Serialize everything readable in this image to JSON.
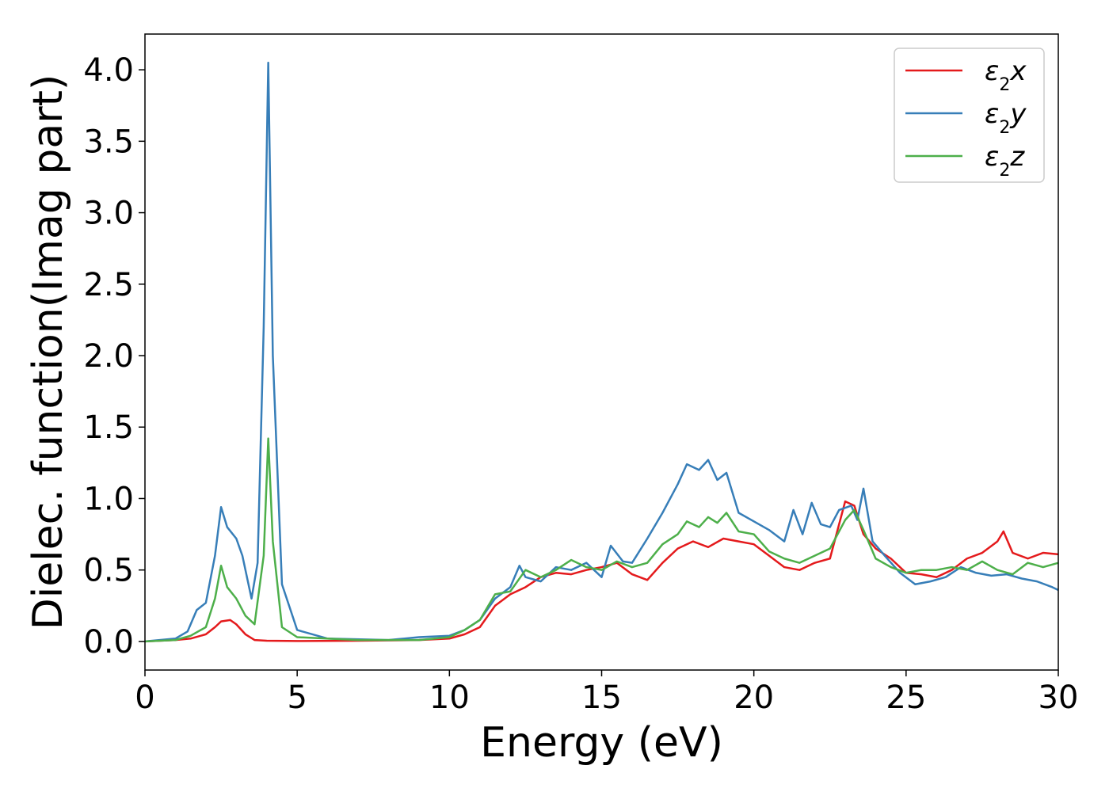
{
  "chart_data": {
    "type": "line",
    "title": "",
    "xlabel": "Energy (eV)",
    "ylabel": "Dielec. function(Imag part)",
    "xlim": [
      0,
      30
    ],
    "ylim": [
      -0.2,
      4.25
    ],
    "xticks": [
      0,
      5,
      10,
      15,
      20,
      25,
      30
    ],
    "xtick_labels": [
      "0",
      "5",
      "10",
      "15",
      "20",
      "25",
      "30"
    ],
    "yticks": [
      0.0,
      0.5,
      1.0,
      1.5,
      2.0,
      2.5,
      3.0,
      3.5,
      4.0
    ],
    "ytick_labels": [
      "0.0",
      "0.5",
      "1.0",
      "1.5",
      "2.0",
      "2.5",
      "3.0",
      "3.5",
      "4.0"
    ],
    "grid": false,
    "legend_position": "top-right",
    "series": [
      {
        "name": "ε2x",
        "legend_main": "ε",
        "legend_sub": "2",
        "legend_suffix": "x",
        "color": "#e41a1c",
        "points": [
          [
            0,
            0
          ],
          [
            1.0,
            0.01
          ],
          [
            1.5,
            0.02
          ],
          [
            2.0,
            0.05
          ],
          [
            2.3,
            0.1
          ],
          [
            2.5,
            0.14
          ],
          [
            2.8,
            0.15
          ],
          [
            3.0,
            0.12
          ],
          [
            3.3,
            0.05
          ],
          [
            3.6,
            0.01
          ],
          [
            4.0,
            0.005
          ],
          [
            5,
            0.003
          ],
          [
            7,
            0.005
          ],
          [
            9,
            0.01
          ],
          [
            10,
            0.02
          ],
          [
            10.5,
            0.05
          ],
          [
            11,
            0.1
          ],
          [
            11.5,
            0.25
          ],
          [
            12,
            0.33
          ],
          [
            12.5,
            0.38
          ],
          [
            13,
            0.45
          ],
          [
            13.5,
            0.48
          ],
          [
            14,
            0.47
          ],
          [
            14.5,
            0.5
          ],
          [
            15,
            0.52
          ],
          [
            15.5,
            0.55
          ],
          [
            16,
            0.47
          ],
          [
            16.5,
            0.43
          ],
          [
            17,
            0.55
          ],
          [
            17.5,
            0.65
          ],
          [
            18,
            0.7
          ],
          [
            18.5,
            0.66
          ],
          [
            19,
            0.72
          ],
          [
            19.5,
            0.7
          ],
          [
            20,
            0.68
          ],
          [
            20.5,
            0.6
          ],
          [
            21,
            0.52
          ],
          [
            21.5,
            0.5
          ],
          [
            22,
            0.55
          ],
          [
            22.5,
            0.58
          ],
          [
            23,
            0.98
          ],
          [
            23.3,
            0.95
          ],
          [
            23.6,
            0.75
          ],
          [
            24,
            0.65
          ],
          [
            24.5,
            0.58
          ],
          [
            25,
            0.48
          ],
          [
            25.5,
            0.47
          ],
          [
            26,
            0.45
          ],
          [
            26.5,
            0.5
          ],
          [
            27,
            0.58
          ],
          [
            27.5,
            0.62
          ],
          [
            28,
            0.7
          ],
          [
            28.2,
            0.77
          ],
          [
            28.5,
            0.62
          ],
          [
            29,
            0.58
          ],
          [
            29.5,
            0.62
          ],
          [
            30,
            0.61
          ]
        ]
      },
      {
        "name": "ε2y",
        "legend_main": "ε",
        "legend_sub": "2",
        "legend_suffix": "y",
        "color": "#377eb8",
        "points": [
          [
            0,
            0
          ],
          [
            1.0,
            0.02
          ],
          [
            1.4,
            0.07
          ],
          [
            1.7,
            0.22
          ],
          [
            2.0,
            0.27
          ],
          [
            2.3,
            0.6
          ],
          [
            2.5,
            0.94
          ],
          [
            2.7,
            0.8
          ],
          [
            3.0,
            0.72
          ],
          [
            3.2,
            0.6
          ],
          [
            3.5,
            0.3
          ],
          [
            3.7,
            0.55
          ],
          [
            3.9,
            2.2
          ],
          [
            4.05,
            4.05
          ],
          [
            4.2,
            2.0
          ],
          [
            4.5,
            0.4
          ],
          [
            5,
            0.08
          ],
          [
            6,
            0.02
          ],
          [
            8,
            0.01
          ],
          [
            9,
            0.03
          ],
          [
            10,
            0.04
          ],
          [
            10.5,
            0.08
          ],
          [
            11,
            0.15
          ],
          [
            11.5,
            0.3
          ],
          [
            12,
            0.38
          ],
          [
            12.3,
            0.53
          ],
          [
            12.5,
            0.45
          ],
          [
            13,
            0.42
          ],
          [
            13.5,
            0.52
          ],
          [
            14,
            0.5
          ],
          [
            14.5,
            0.55
          ],
          [
            15,
            0.45
          ],
          [
            15.3,
            0.67
          ],
          [
            15.7,
            0.56
          ],
          [
            16,
            0.55
          ],
          [
            16.5,
            0.72
          ],
          [
            17,
            0.9
          ],
          [
            17.5,
            1.1
          ],
          [
            17.8,
            1.24
          ],
          [
            18.2,
            1.2
          ],
          [
            18.5,
            1.27
          ],
          [
            18.8,
            1.13
          ],
          [
            19.1,
            1.18
          ],
          [
            19.5,
            0.9
          ],
          [
            20,
            0.84
          ],
          [
            20.5,
            0.78
          ],
          [
            21,
            0.7
          ],
          [
            21.3,
            0.92
          ],
          [
            21.6,
            0.75
          ],
          [
            21.9,
            0.97
          ],
          [
            22.2,
            0.82
          ],
          [
            22.5,
            0.8
          ],
          [
            22.8,
            0.92
          ],
          [
            23.2,
            0.95
          ],
          [
            23.4,
            0.85
          ],
          [
            23.6,
            1.07
          ],
          [
            23.9,
            0.7
          ],
          [
            24.3,
            0.6
          ],
          [
            24.8,
            0.48
          ],
          [
            25.3,
            0.4
          ],
          [
            25.8,
            0.42
          ],
          [
            26.3,
            0.45
          ],
          [
            26.8,
            0.52
          ],
          [
            27.3,
            0.48
          ],
          [
            27.8,
            0.46
          ],
          [
            28.3,
            0.47
          ],
          [
            28.8,
            0.44
          ],
          [
            29.3,
            0.42
          ],
          [
            29.8,
            0.38
          ],
          [
            30,
            0.36
          ]
        ]
      },
      {
        "name": "ε2z",
        "legend_main": "ε",
        "legend_sub": "2",
        "legend_suffix": "z",
        "color": "#4daf4a",
        "points": [
          [
            0,
            0
          ],
          [
            1.0,
            0.01
          ],
          [
            1.5,
            0.04
          ],
          [
            2.0,
            0.1
          ],
          [
            2.3,
            0.3
          ],
          [
            2.5,
            0.53
          ],
          [
            2.7,
            0.38
          ],
          [
            3.0,
            0.3
          ],
          [
            3.3,
            0.18
          ],
          [
            3.6,
            0.12
          ],
          [
            3.9,
            0.6
          ],
          [
            4.05,
            1.42
          ],
          [
            4.2,
            0.7
          ],
          [
            4.5,
            0.1
          ],
          [
            5,
            0.03
          ],
          [
            7,
            0.01
          ],
          [
            9,
            0.01
          ],
          [
            10,
            0.03
          ],
          [
            10.5,
            0.08
          ],
          [
            11,
            0.15
          ],
          [
            11.5,
            0.33
          ],
          [
            12,
            0.35
          ],
          [
            12.5,
            0.5
          ],
          [
            13,
            0.45
          ],
          [
            13.5,
            0.5
          ],
          [
            14,
            0.57
          ],
          [
            14.5,
            0.52
          ],
          [
            15,
            0.5
          ],
          [
            15.5,
            0.56
          ],
          [
            16,
            0.52
          ],
          [
            16.5,
            0.55
          ],
          [
            17,
            0.68
          ],
          [
            17.5,
            0.75
          ],
          [
            17.8,
            0.84
          ],
          [
            18.2,
            0.8
          ],
          [
            18.5,
            0.87
          ],
          [
            18.8,
            0.83
          ],
          [
            19.1,
            0.9
          ],
          [
            19.5,
            0.77
          ],
          [
            20,
            0.75
          ],
          [
            20.5,
            0.63
          ],
          [
            21,
            0.58
          ],
          [
            21.5,
            0.55
          ],
          [
            22,
            0.6
          ],
          [
            22.5,
            0.65
          ],
          [
            23,
            0.85
          ],
          [
            23.3,
            0.92
          ],
          [
            23.6,
            0.78
          ],
          [
            24,
            0.58
          ],
          [
            24.5,
            0.52
          ],
          [
            25,
            0.48
          ],
          [
            25.5,
            0.5
          ],
          [
            26,
            0.5
          ],
          [
            26.5,
            0.52
          ],
          [
            27,
            0.5
          ],
          [
            27.5,
            0.56
          ],
          [
            28,
            0.5
          ],
          [
            28.5,
            0.47
          ],
          [
            29,
            0.55
          ],
          [
            29.5,
            0.52
          ],
          [
            30,
            0.55
          ]
        ]
      }
    ]
  }
}
